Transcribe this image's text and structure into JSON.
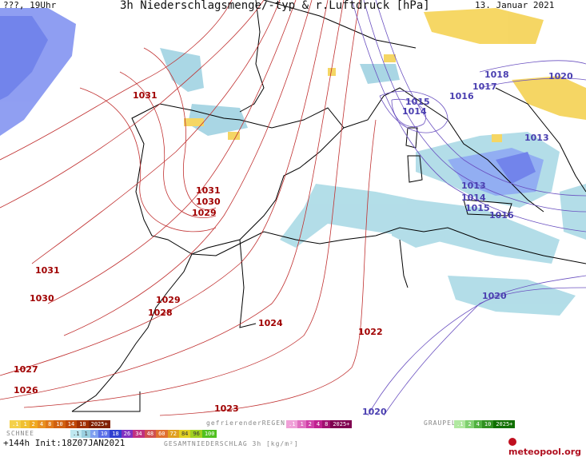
{
  "header": {
    "left": "???, 19Uhr",
    "title": "3h Niederschlagsmenge/-typ & r.Luftdruck [hPa]",
    "date": "13. Januar 2021"
  },
  "isobar_labels_red": [
    "1031",
    "1031",
    "1030",
    "1029",
    "1031",
    "1030",
    "1029",
    "1028",
    "1024",
    "1022",
    "1027",
    "1026",
    "1023"
  ],
  "isobar_labels_blue": [
    "1015",
    "1014",
    "1016",
    "1018",
    "1017",
    "1020",
    "1013",
    "1013",
    "1014",
    "1015",
    "1016",
    "1020",
    "1020"
  ],
  "legend": {
    "snow_label": "SCHNEE",
    "snow_scale": [
      ".1",
      ".25",
      ".5",
      "1",
      "2",
      "4",
      "6",
      "8",
      "10",
      "12",
      "14",
      "16",
      "18",
      "2025+"
    ],
    "freezing_label": "gefrierenderREGEN",
    "freezing_scale": [
      ".1",
      ".5",
      "1",
      "2",
      "4",
      "8",
      "10",
      "14",
      "16",
      "2025+"
    ],
    "graupel_label": "GRAUPEL",
    "graupel_scale": [
      ".1",
      ".5",
      "1",
      "2",
      "4",
      "8",
      "10",
      "14",
      "16",
      "2025+"
    ],
    "rain_scale": [
      ".1",
      ".2",
      ".5",
      "1",
      "2",
      "4",
      "6",
      "8",
      "10",
      "12",
      "14",
      "16",
      "18",
      "20",
      "22",
      "24",
      "26",
      "28",
      "30",
      "32",
      "34",
      "36",
      "40",
      "44",
      "48",
      "52",
      "56",
      "60",
      "64",
      "68",
      "72",
      "76",
      "80",
      "84",
      "88",
      "92",
      "96",
      "100"
    ],
    "total_label": "GESAMTNIEDERSCHLAG 3h [kg/m²]",
    "run_info": "+144h Init:18Z07JAN2021",
    "brand": "meteopool.org"
  }
}
